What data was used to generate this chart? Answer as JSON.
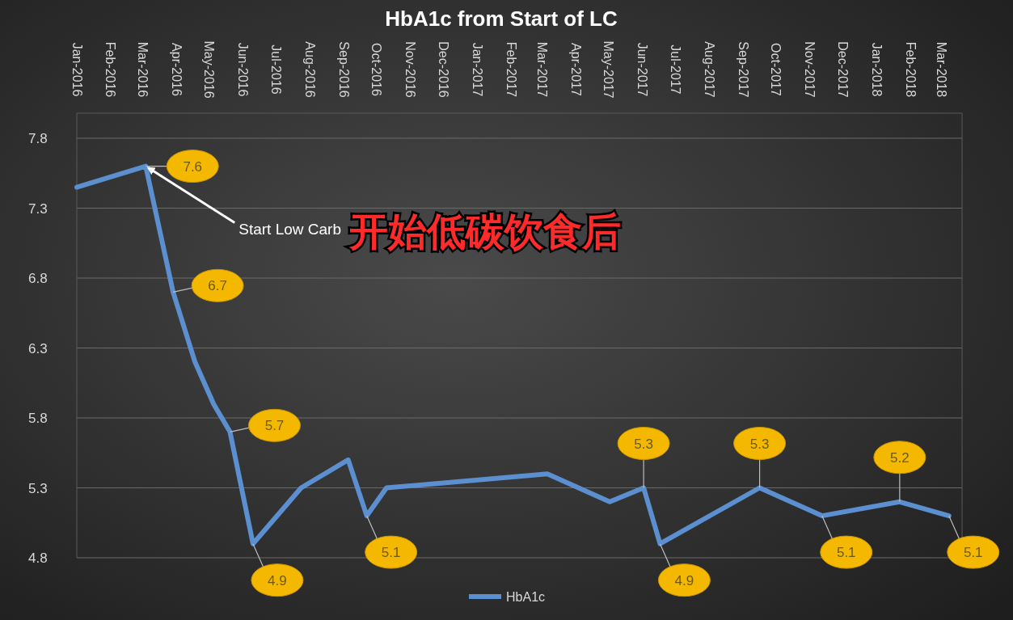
{
  "chart_data": {
    "type": "line",
    "title": "HbA1c from Start of LC",
    "x": [
      "2016-01-01",
      "2016-03-04",
      "2016-03-29",
      "2016-04-18",
      "2016-05-05",
      "2016-05-20",
      "2016-06-10",
      "2016-07-24",
      "2016-09-05",
      "2016-09-22",
      "2016-10-10",
      "2017-03-06",
      "2017-05-02",
      "2017-06-02",
      "2017-06-17",
      "2017-09-16",
      "2017-11-12",
      "2018-01-22",
      "2018-03-08"
    ],
    "series": [
      {
        "name": "HbA1c",
        "color": "#5b8fd0",
        "values": [
          7.45,
          7.6,
          6.7,
          6.2,
          5.9,
          5.7,
          4.9,
          5.3,
          5.5,
          5.1,
          5.3,
          5.4,
          5.2,
          5.3,
          4.9,
          5.3,
          5.1,
          5.2,
          5.1
        ],
        "value_labels": [
          null,
          "7.6",
          "6.7",
          null,
          null,
          "5.7",
          "4.9",
          null,
          null,
          "5.1",
          null,
          null,
          null,
          "5.3",
          "4.9",
          "5.3",
          "5.1",
          "5.2",
          "5.1"
        ]
      }
    ],
    "xlim": [
      "2016-01-01",
      "2018-03-20"
    ],
    "xticks": [
      {
        "value": "2016-01",
        "label": "Jan-2016"
      },
      {
        "value": "2016-02",
        "label": "Feb-2016"
      },
      {
        "value": "2016-03",
        "label": "Mar-2016"
      },
      {
        "value": "2016-04",
        "label": "Apr-2016"
      },
      {
        "value": "2016-05",
        "label": "May-2016"
      },
      {
        "value": "2016-06",
        "label": "Jun-2016"
      },
      {
        "value": "2016-07",
        "label": "Jul-2016"
      },
      {
        "value": "2016-08",
        "label": "Aug-2016"
      },
      {
        "value": "2016-09",
        "label": "Sep-2016"
      },
      {
        "value": "2016-10",
        "label": "Oct-2016"
      },
      {
        "value": "2016-11",
        "label": "Nov-2016"
      },
      {
        "value": "2016-12",
        "label": "Dec-2016"
      },
      {
        "value": "2017-01",
        "label": "Jan-2017"
      },
      {
        "value": "2017-02",
        "label": "Feb-2017"
      },
      {
        "value": "2017-03",
        "label": "Mar-2017"
      },
      {
        "value": "2017-04",
        "label": "Apr-2017"
      },
      {
        "value": "2017-05",
        "label": "May-2017"
      },
      {
        "value": "2017-06",
        "label": "Jun-2017"
      },
      {
        "value": "2017-07",
        "label": "Jul-2017"
      },
      {
        "value": "2017-08",
        "label": "Aug-2017"
      },
      {
        "value": "2017-09",
        "label": "Sep-2017"
      },
      {
        "value": "2017-10",
        "label": "Oct-2017"
      },
      {
        "value": "2017-11",
        "label": "Nov-2017"
      },
      {
        "value": "2017-12",
        "label": "Dec-2017"
      },
      {
        "value": "2018-01",
        "label": "Jan-2018"
      },
      {
        "value": "2018-02",
        "label": "Feb-2018"
      },
      {
        "value": "2018-03",
        "label": "Mar-2018"
      }
    ],
    "ylim": [
      4.8,
      7.8
    ],
    "yticks": [
      4.8,
      5.3,
      5.8,
      6.3,
      6.8,
      7.3,
      7.8
    ],
    "grid": "y",
    "legend": "bottom",
    "line_style": "solid",
    "marker": "none",
    "annotations": [
      {
        "text": "Start Low Carb",
        "x": "2016-03-04",
        "y": 7.6
      },
      "开始低碳饮食后"
    ]
  }
}
